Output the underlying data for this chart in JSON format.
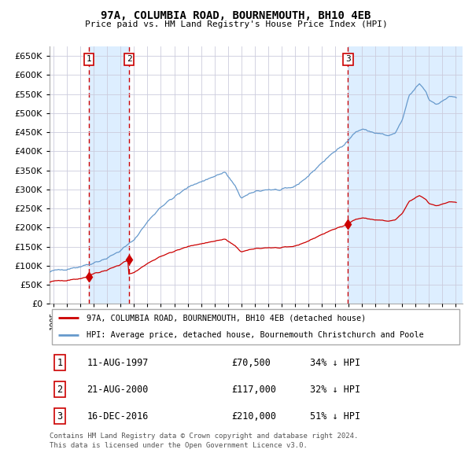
{
  "title": "97A, COLUMBIA ROAD, BOURNEMOUTH, BH10 4EB",
  "subtitle": "Price paid vs. HM Land Registry's House Price Index (HPI)",
  "legend_line1": "97A, COLUMBIA ROAD, BOURNEMOUTH, BH10 4EB (detached house)",
  "legend_line2": "HPI: Average price, detached house, Bournemouth Christchurch and Poole",
  "footer1": "Contains HM Land Registry data © Crown copyright and database right 2024.",
  "footer2": "This data is licensed under the Open Government Licence v3.0.",
  "transactions": [
    {
      "label": "1",
      "date_str": "11-AUG-1997",
      "date_num": 1997.614,
      "price": 70500,
      "hpi_pct": "34% ↓ HPI"
    },
    {
      "label": "2",
      "date_str": "21-AUG-2000",
      "date_num": 2000.638,
      "price": 117000,
      "hpi_pct": "32% ↓ HPI"
    },
    {
      "label": "3",
      "date_str": "16-DEC-2016",
      "date_num": 2016.956,
      "price": 210000,
      "hpi_pct": "51% ↓ HPI"
    }
  ],
  "red_line_color": "#cc0000",
  "blue_line_color": "#6699cc",
  "vline_color": "#cc0000",
  "bg_band_color": "#ddeeff",
  "grid_color": "#ccccdd",
  "ylim": [
    0,
    675000
  ],
  "yticks": [
    0,
    50000,
    100000,
    150000,
    200000,
    250000,
    300000,
    350000,
    400000,
    450000,
    500000,
    550000,
    600000,
    650000
  ],
  "xlim_start": 1994.7,
  "xlim_end": 2025.5,
  "xticks": [
    1995,
    1996,
    1997,
    1998,
    1999,
    2000,
    2001,
    2002,
    2003,
    2004,
    2005,
    2006,
    2007,
    2008,
    2009,
    2010,
    2011,
    2012,
    2013,
    2014,
    2015,
    2016,
    2017,
    2018,
    2019,
    2020,
    2021,
    2022,
    2023,
    2024,
    2025
  ]
}
